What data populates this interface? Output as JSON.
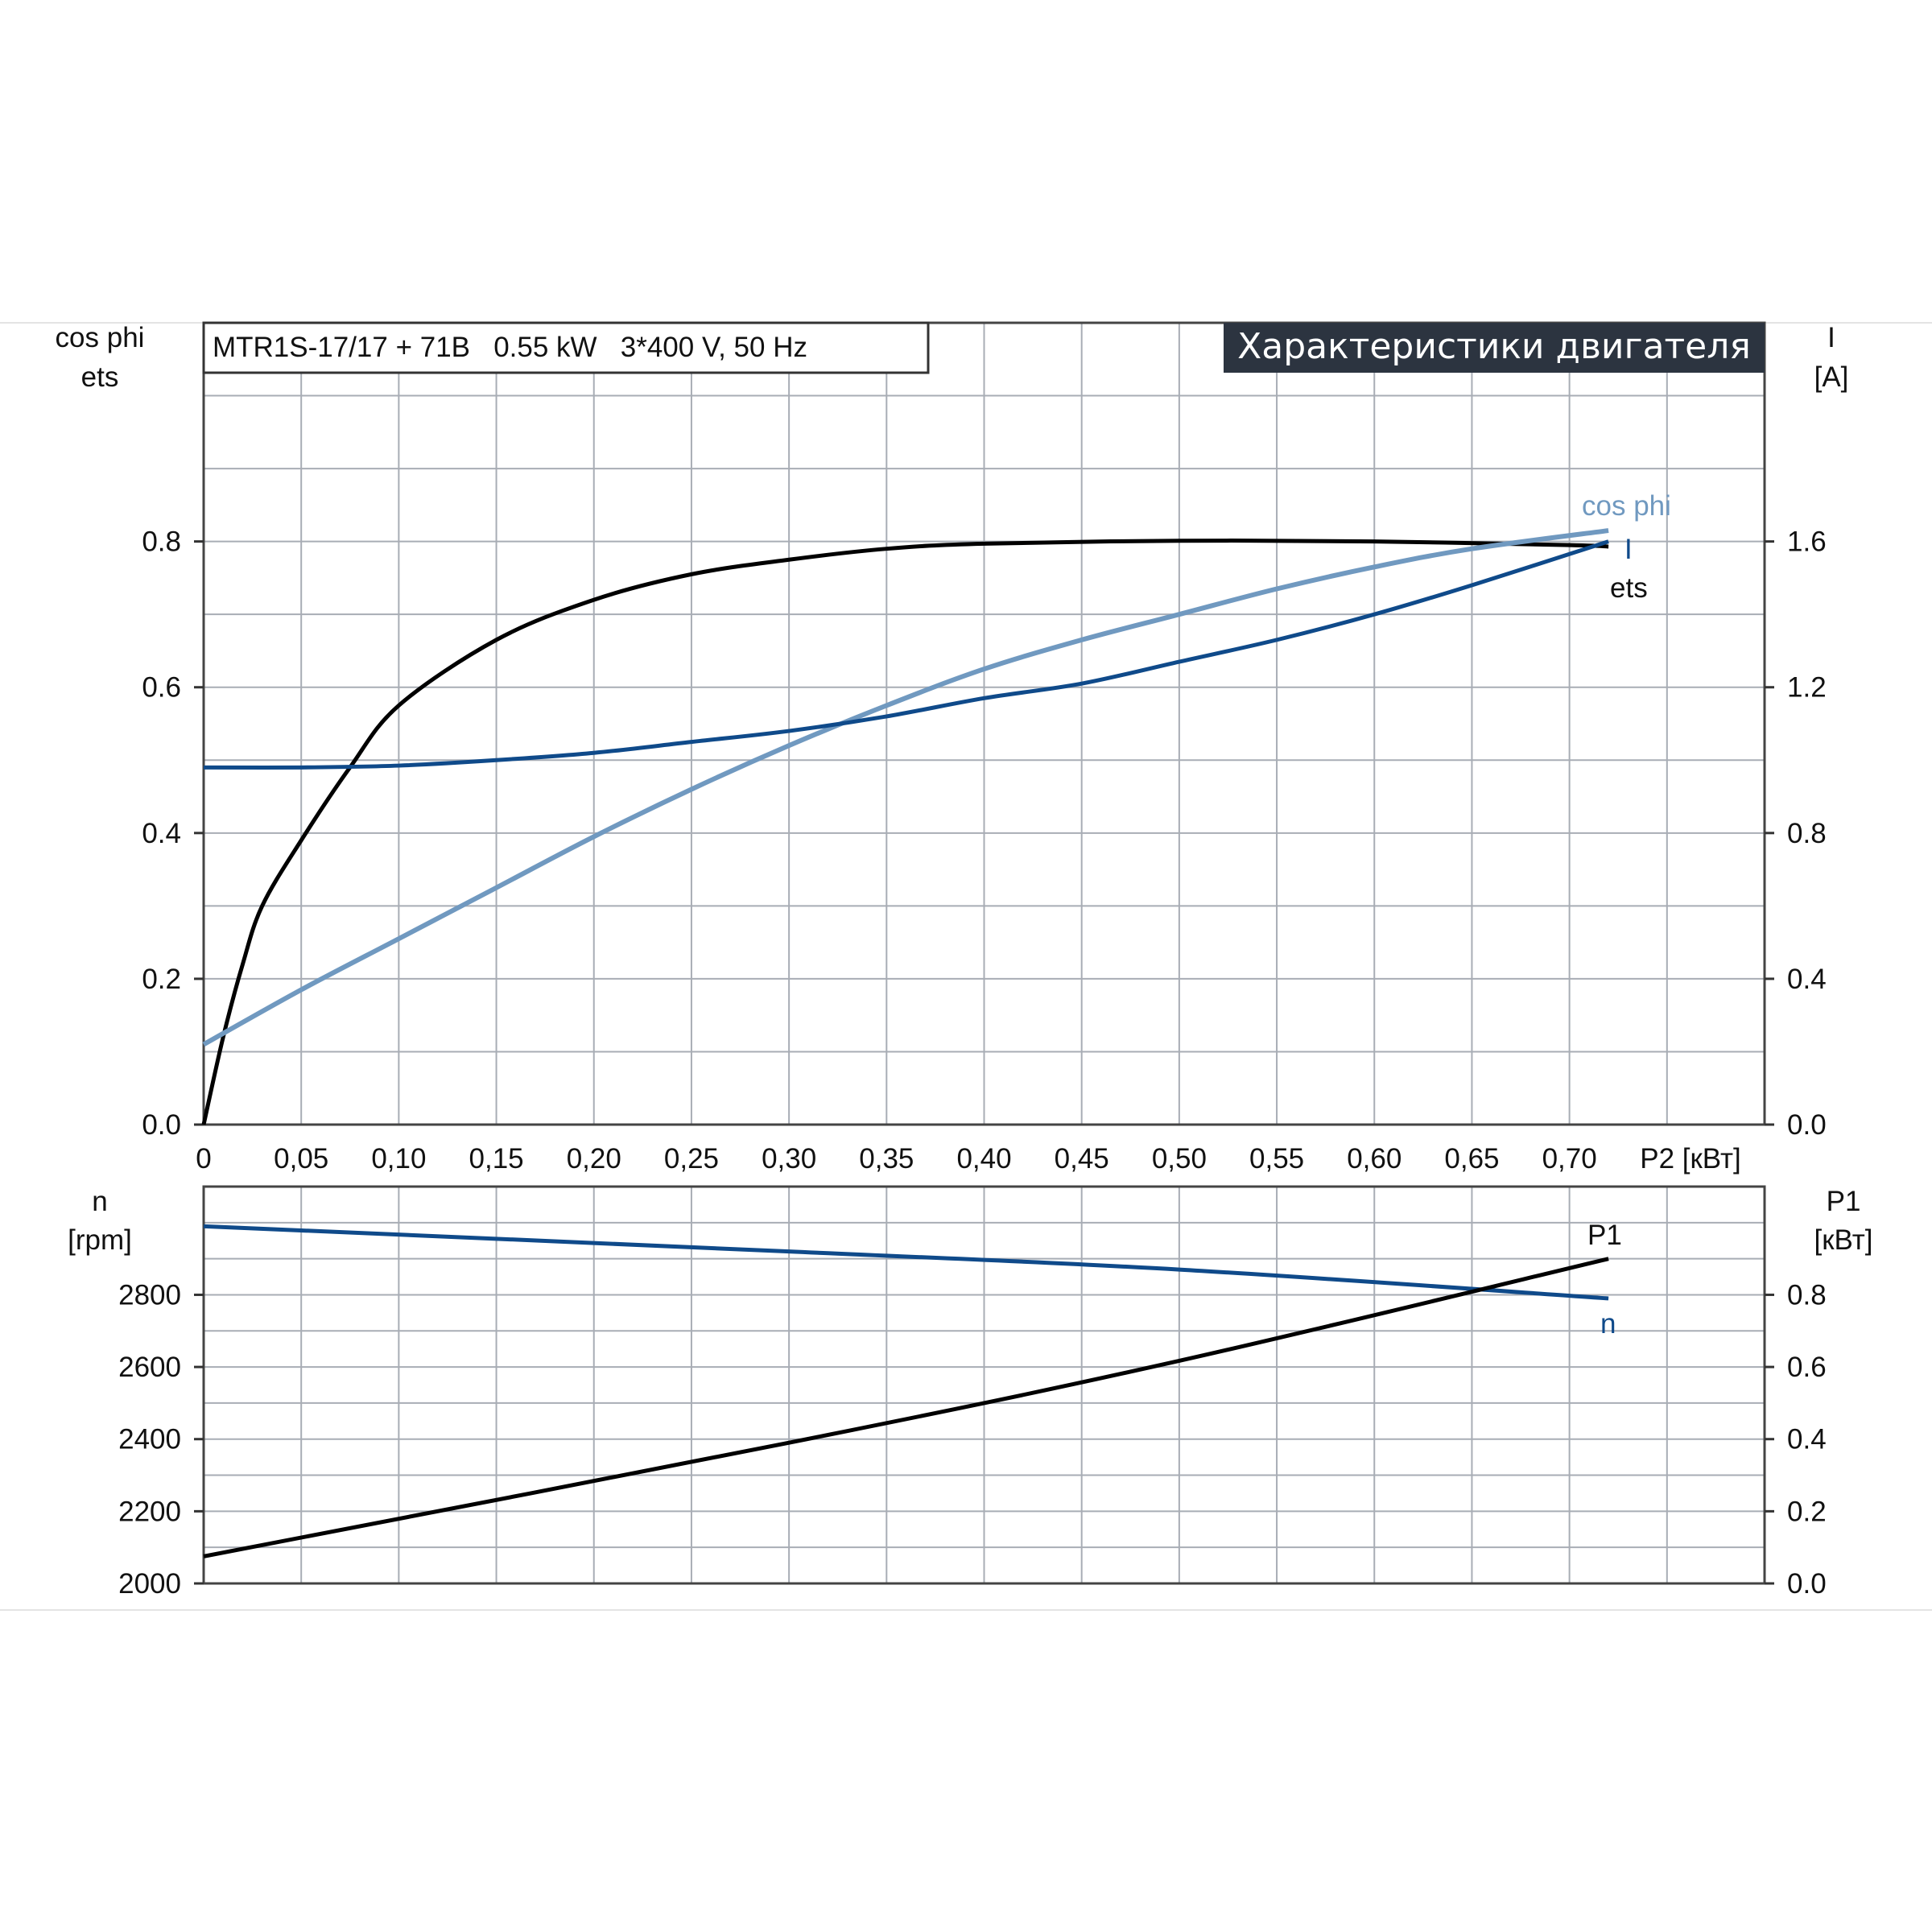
{
  "colors": {
    "ets": "#000000",
    "cos_phi": "#7099c0",
    "I": "#0f4a8a",
    "n": "#0f4a8a",
    "P1": "#000000",
    "header_bg": "#2c3440",
    "grid": "#a8adb5"
  },
  "chart_data": [
    {
      "type": "line",
      "title_box": "MTR1S-17/17 + 71B   0.55 kW   3*400 V, 50 Hz",
      "header": "Характеристики двигателя",
      "xlabel": "P2 [кВт]",
      "xlim": [
        0,
        0.8
      ],
      "x_ticks": [
        "0",
        "0,05",
        "0,10",
        "0,15",
        "0,20",
        "0,25",
        "0,30",
        "0,35",
        "0,40",
        "0,45",
        "0,50",
        "0,55",
        "0,60",
        "0,65",
        "0,70"
      ],
      "ylabel_left": [
        "cos phi",
        "ets"
      ],
      "ylim_left": [
        0,
        1.1
      ],
      "y_ticks_left": [
        "0.0",
        "0.2",
        "0.4",
        "0.6",
        "0.8"
      ],
      "ylabel_right": [
        "I",
        "[A]"
      ],
      "ylim_right": [
        0,
        2.2
      ],
      "y_ticks_right": [
        "0.0",
        "0.4",
        "0.8",
        "1.2",
        "1.6"
      ],
      "grid": true,
      "series": [
        {
          "name": "ets",
          "axis": "left",
          "x": [
            0,
            0.01,
            0.02,
            0.03,
            0.05,
            0.075,
            0.1,
            0.15,
            0.2,
            0.25,
            0.3,
            0.35,
            0.4,
            0.5,
            0.6,
            0.7,
            0.72
          ],
          "y": [
            0,
            0.12,
            0.22,
            0.3,
            0.39,
            0.49,
            0.575,
            0.665,
            0.72,
            0.755,
            0.775,
            0.79,
            0.797,
            0.801,
            0.8,
            0.795,
            0.793
          ]
        },
        {
          "name": "cos phi",
          "axis": "left",
          "x": [
            0,
            0.05,
            0.1,
            0.15,
            0.2,
            0.25,
            0.3,
            0.35,
            0.4,
            0.45,
            0.5,
            0.55,
            0.6,
            0.65,
            0.72
          ],
          "y": [
            0.11,
            0.185,
            0.255,
            0.325,
            0.395,
            0.46,
            0.52,
            0.575,
            0.625,
            0.665,
            0.7,
            0.735,
            0.765,
            0.79,
            0.815
          ]
        },
        {
          "name": "I",
          "axis": "right",
          "x": [
            0,
            0.05,
            0.1,
            0.15,
            0.2,
            0.25,
            0.3,
            0.35,
            0.4,
            0.45,
            0.5,
            0.55,
            0.6,
            0.65,
            0.72
          ],
          "y": [
            0.98,
            0.98,
            0.985,
            1.0,
            1.02,
            1.05,
            1.08,
            1.12,
            1.17,
            1.21,
            1.27,
            1.33,
            1.4,
            1.48,
            1.6
          ]
        }
      ]
    },
    {
      "type": "line",
      "xlim": [
        0,
        0.8
      ],
      "ylabel_left": [
        "n",
        "[rpm]"
      ],
      "ylim_left": [
        2000,
        3100
      ],
      "y_ticks_left": [
        "2000",
        "2200",
        "2400",
        "2600",
        "2800"
      ],
      "ylabel_right": [
        "P1",
        "[кВт]"
      ],
      "ylim_right": [
        0,
        1.1
      ],
      "y_ticks_right": [
        "0.0",
        "0.2",
        "0.4",
        "0.6",
        "0.8"
      ],
      "grid": true,
      "series": [
        {
          "name": "n",
          "axis": "left",
          "x": [
            0,
            0.3,
            0.5,
            0.72
          ],
          "y": [
            2990,
            2920,
            2870,
            2790
          ]
        },
        {
          "name": "P1",
          "axis": "right",
          "x": [
            0,
            0.3,
            0.5,
            0.72
          ],
          "y": [
            0.075,
            0.39,
            0.617,
            0.9
          ]
        }
      ]
    }
  ]
}
